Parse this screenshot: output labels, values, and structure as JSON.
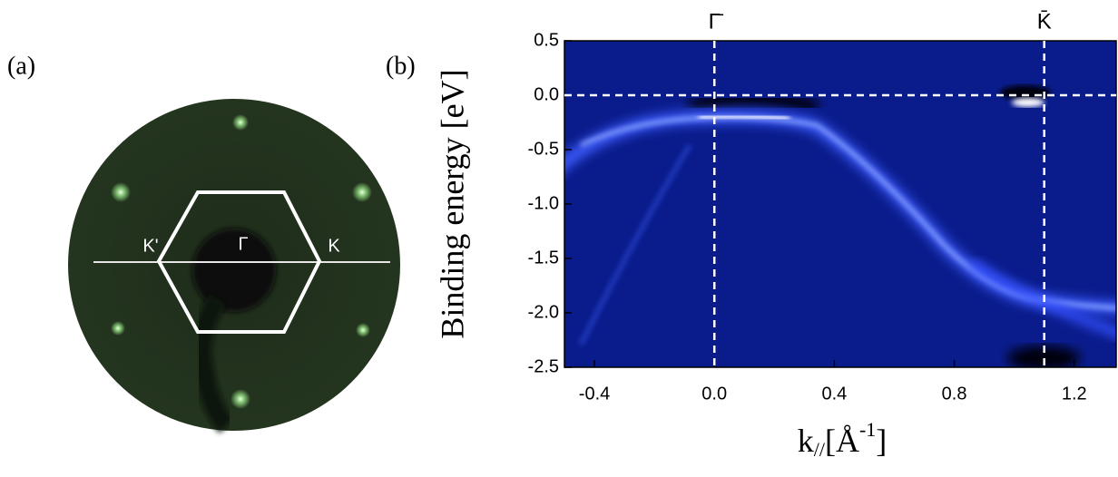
{
  "panel_a": {
    "label": "(a)",
    "points": [
      "K'",
      "Γ",
      "K"
    ]
  },
  "chart_data": {
    "type": "arpes",
    "panel_label": "(b)",
    "y_label": "Binding energy [eV]",
    "x_label": {
      "base": "k",
      "sub": "//",
      "mid": "[Å",
      "sup": "-1",
      "end": "]"
    },
    "xlim": [
      -0.5,
      1.34
    ],
    "ylim": [
      -2.5,
      0.5
    ],
    "xticks": [
      -0.4,
      {
        "value": 0,
        "label": "0.0"
      },
      0.4,
      0.8,
      1.2
    ],
    "yticks": [
      0.5,
      {
        "value": 0,
        "label": "0.0"
      },
      -0.5,
      {
        "value": -1,
        "label": "-1.0"
      },
      -1.5,
      {
        "value": -2,
        "label": "-2.0"
      },
      -2.5
    ],
    "markers": [
      {
        "x": 0,
        "label": "Γ̄"
      },
      {
        "x": 1.1,
        "label": "K̄"
      }
    ],
    "hline": 0
  }
}
